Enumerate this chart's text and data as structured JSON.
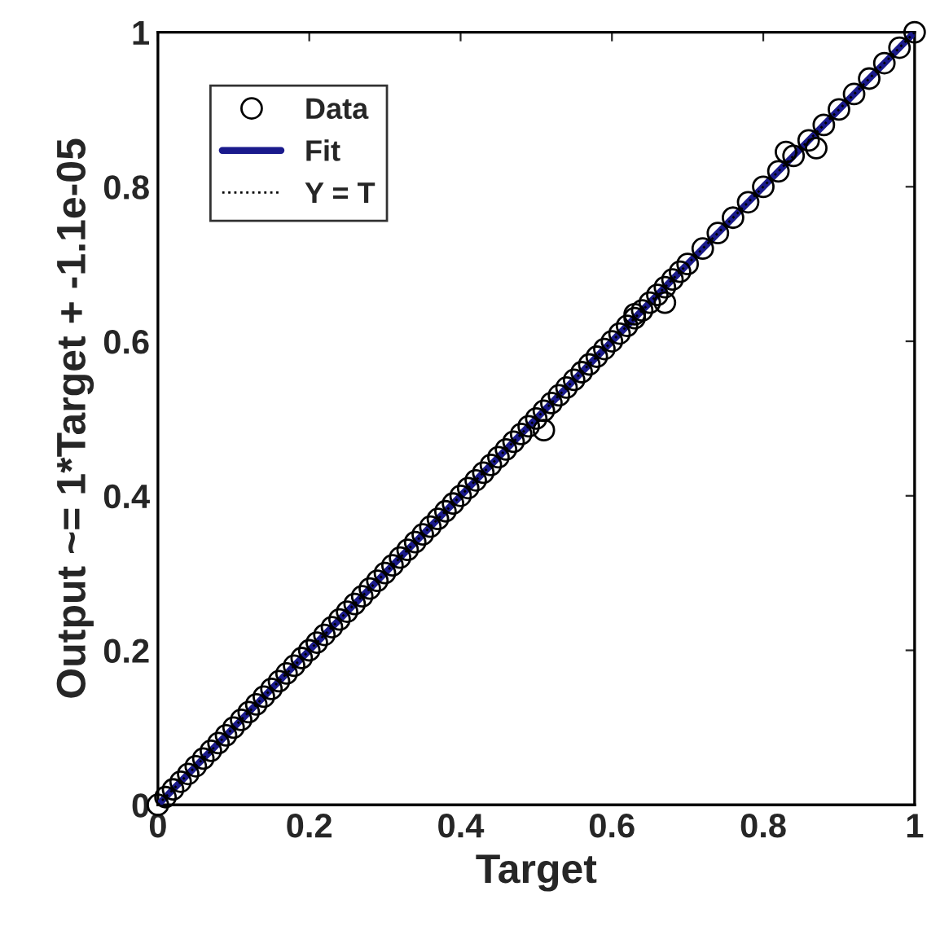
{
  "chart_data": {
    "type": "scatter",
    "xlabel": "Target",
    "ylabel": "Output ~= 1*Target + -1.1e-05",
    "xlim": [
      0,
      1
    ],
    "ylim": [
      0,
      1
    ],
    "xticks": [
      0,
      0.2,
      0.4,
      0.6,
      0.8,
      1
    ],
    "yticks": [
      0,
      0.2,
      0.4,
      0.6,
      0.8,
      1
    ],
    "grid": false,
    "legend": "top left",
    "series": [
      {
        "name": "Data",
        "marker": "circle",
        "color": "#000000",
        "x": [
          0,
          0.01,
          0.02,
          0.03,
          0.04,
          0.05,
          0.06,
          0.07,
          0.08,
          0.09,
          0.1,
          0.11,
          0.12,
          0.13,
          0.14,
          0.15,
          0.16,
          0.17,
          0.18,
          0.19,
          0.2,
          0.21,
          0.22,
          0.23,
          0.24,
          0.25,
          0.26,
          0.27,
          0.28,
          0.29,
          0.3,
          0.31,
          0.32,
          0.33,
          0.34,
          0.35,
          0.36,
          0.37,
          0.38,
          0.39,
          0.4,
          0.41,
          0.42,
          0.43,
          0.44,
          0.45,
          0.46,
          0.47,
          0.48,
          0.49,
          0.5,
          0.51,
          0.52,
          0.53,
          0.54,
          0.55,
          0.56,
          0.57,
          0.58,
          0.59,
          0.6,
          0.61,
          0.62,
          0.63,
          0.64,
          0.65,
          0.66,
          0.67,
          0.68,
          0.69,
          0.7,
          0.72,
          0.74,
          0.76,
          0.78,
          0.8,
          0.82,
          0.84,
          0.86,
          0.88,
          0.9,
          0.92,
          0.94,
          0.96,
          0.98,
          1,
          0.51,
          0.83,
          0.87,
          0.63,
          0.67
        ],
        "values": [
          0,
          0.01,
          0.02,
          0.03,
          0.04,
          0.05,
          0.06,
          0.07,
          0.08,
          0.09,
          0.1,
          0.11,
          0.12,
          0.13,
          0.14,
          0.15,
          0.16,
          0.17,
          0.18,
          0.19,
          0.2,
          0.21,
          0.22,
          0.23,
          0.24,
          0.25,
          0.26,
          0.27,
          0.28,
          0.29,
          0.3,
          0.31,
          0.32,
          0.33,
          0.34,
          0.35,
          0.36,
          0.37,
          0.38,
          0.39,
          0.4,
          0.41,
          0.42,
          0.43,
          0.44,
          0.45,
          0.46,
          0.47,
          0.48,
          0.49,
          0.5,
          0.51,
          0.52,
          0.53,
          0.54,
          0.55,
          0.56,
          0.57,
          0.58,
          0.59,
          0.6,
          0.61,
          0.62,
          0.63,
          0.64,
          0.65,
          0.66,
          0.67,
          0.68,
          0.69,
          0.7,
          0.72,
          0.74,
          0.76,
          0.78,
          0.8,
          0.82,
          0.84,
          0.86,
          0.88,
          0.9,
          0.92,
          0.94,
          0.96,
          0.98,
          1,
          0.485,
          0.845,
          0.85,
          0.635,
          0.65
        ]
      },
      {
        "name": "Fit",
        "type": "line",
        "line_style": "solid",
        "color": "#1a1a8c",
        "x": [
          0,
          1
        ],
        "values": [
          0,
          1
        ]
      },
      {
        "name": "Y = T",
        "type": "line",
        "line_style": "dotted",
        "color": "#000000",
        "x": [
          0,
          1
        ],
        "values": [
          0,
          1
        ]
      }
    ]
  }
}
